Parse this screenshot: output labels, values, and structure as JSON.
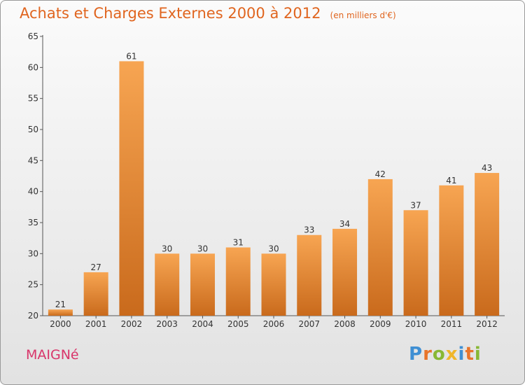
{
  "chart_data": {
    "type": "bar",
    "title": "Achats et Charges Externes 2000 à 2012",
    "subtitle": "(en milliers d'€)",
    "categories": [
      "2000",
      "2001",
      "2002",
      "2003",
      "2004",
      "2005",
      "2006",
      "2007",
      "2008",
      "2009",
      "2010",
      "2011",
      "2012"
    ],
    "values": [
      21,
      27,
      61,
      30,
      30,
      31,
      30,
      33,
      34,
      42,
      37,
      41,
      43
    ],
    "ylim": [
      20,
      65
    ],
    "yticks": [
      20,
      25,
      30,
      35,
      40,
      45,
      50,
      55,
      60,
      65
    ],
    "grid": false,
    "bar_color_light": "#f7a552",
    "bar_color_dark": "#c96a1c",
    "title_color": "#e0651f"
  },
  "commune": "MAIGNé",
  "logo": "Proxiti"
}
